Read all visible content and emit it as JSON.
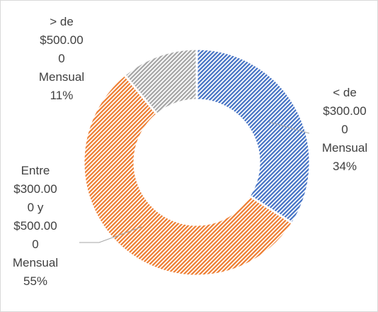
{
  "chart_data": {
    "type": "donut",
    "categories": [
      "< de $300.000 Mensual",
      "Entre $300.000 y $500.000 Mensual",
      "> de $500.000 Mensual"
    ],
    "values": [
      34,
      55,
      11
    ],
    "value_labels": [
      "34%",
      "55%",
      "11%"
    ],
    "colors": [
      "#4472c4",
      "#ed7d31",
      "#a5a5a5"
    ]
  }
}
